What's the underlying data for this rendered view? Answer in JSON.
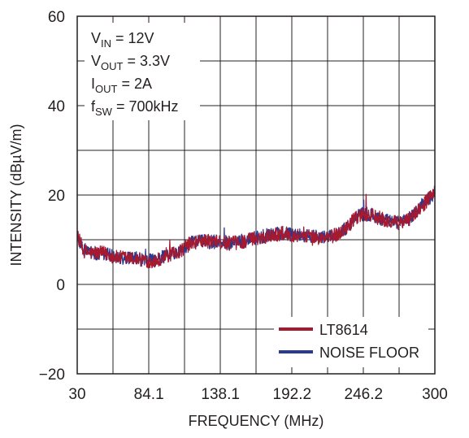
{
  "chart_data": {
    "type": "line",
    "xlabel": "FREQUENCY (MHz)",
    "ylabel": "INTENSITY (dBµV/m)",
    "xlim": [
      30,
      300
    ],
    "ylim": [
      -20,
      60
    ],
    "x_ticks": [
      "30",
      "84.1",
      "138.1",
      "192.2",
      "246.2",
      "300"
    ],
    "x_tick_values": [
      30,
      84.1,
      138.1,
      192.2,
      246.2,
      300
    ],
    "y_ticks": [
      "60",
      "40",
      "20",
      "0",
      "−20"
    ],
    "y_tick_values": [
      60,
      40,
      20,
      0,
      -20
    ],
    "grid": true,
    "legend_position": "bottom-right",
    "annotation": {
      "lines": [
        {
          "main": "V",
          "sub": "IN",
          "rest": " = 12V"
        },
        {
          "main": "V",
          "sub": "OUT",
          "rest": " = 3.3V"
        },
        {
          "main": "I",
          "sub": "OUT",
          "rest": " = 2A"
        },
        {
          "main": "f",
          "sub": "SW",
          "rest": " = 700kHz"
        }
      ]
    },
    "series": [
      {
        "name": "LT8614",
        "color": "#a6192e",
        "x": [
          30,
          35,
          40,
          45,
          50,
          55,
          60,
          65,
          70,
          75,
          80,
          85,
          90,
          95,
          100,
          105,
          110,
          115,
          120,
          125,
          130,
          135,
          140,
          145,
          150,
          155,
          160,
          165,
          170,
          175,
          180,
          185,
          190,
          195,
          200,
          205,
          210,
          215,
          220,
          225,
          230,
          235,
          240,
          245,
          250,
          255,
          260,
          265,
          270,
          275,
          280,
          285,
          290,
          295,
          300
        ],
        "values": [
          11,
          7.5,
          7,
          7,
          7,
          6.5,
          6,
          6,
          5.8,
          5.6,
          5.5,
          5.2,
          5.5,
          6,
          6.5,
          7,
          8,
          9,
          9.5,
          9.8,
          9.6,
          9.4,
          9.3,
          9.2,
          9.3,
          9.6,
          10,
          10.4,
          10.6,
          11,
          11.2,
          11.4,
          11.2,
          11,
          11,
          10.9,
          10.5,
          10.3,
          10.5,
          11,
          11.8,
          13.2,
          14.8,
          15.6,
          15.6,
          15.2,
          14.6,
          14,
          13.8,
          13.8,
          14.5,
          16,
          17.5,
          19,
          20.5
        ]
      },
      {
        "name": "NOISE FLOOR",
        "color": "#2b3990",
        "x": [
          30,
          35,
          40,
          45,
          50,
          55,
          60,
          65,
          70,
          75,
          80,
          85,
          90,
          95,
          100,
          105,
          110,
          115,
          120,
          125,
          130,
          135,
          140,
          145,
          150,
          155,
          160,
          165,
          170,
          175,
          180,
          185,
          190,
          195,
          200,
          205,
          210,
          215,
          220,
          225,
          230,
          235,
          240,
          245,
          250,
          255,
          260,
          265,
          270,
          275,
          280,
          285,
          290,
          295,
          300
        ],
        "values": [
          10.5,
          7.8,
          7.2,
          6.8,
          6.9,
          6.6,
          6.2,
          5.9,
          5.9,
          5.7,
          5.6,
          5.3,
          5.6,
          6.1,
          6.6,
          7.1,
          8.1,
          9.1,
          9.6,
          9.7,
          9.5,
          9.5,
          9.4,
          9.3,
          9.4,
          9.7,
          10.1,
          10.5,
          10.7,
          11.1,
          11.3,
          11.5,
          11.3,
          11.1,
          11.1,
          11,
          10.6,
          10.4,
          10.6,
          11.1,
          11.9,
          13.3,
          14.9,
          15.7,
          15.7,
          15.3,
          14.7,
          14.1,
          13.9,
          13.9,
          14.6,
          16.1,
          17.6,
          19.1,
          20.6
        ]
      }
    ]
  }
}
